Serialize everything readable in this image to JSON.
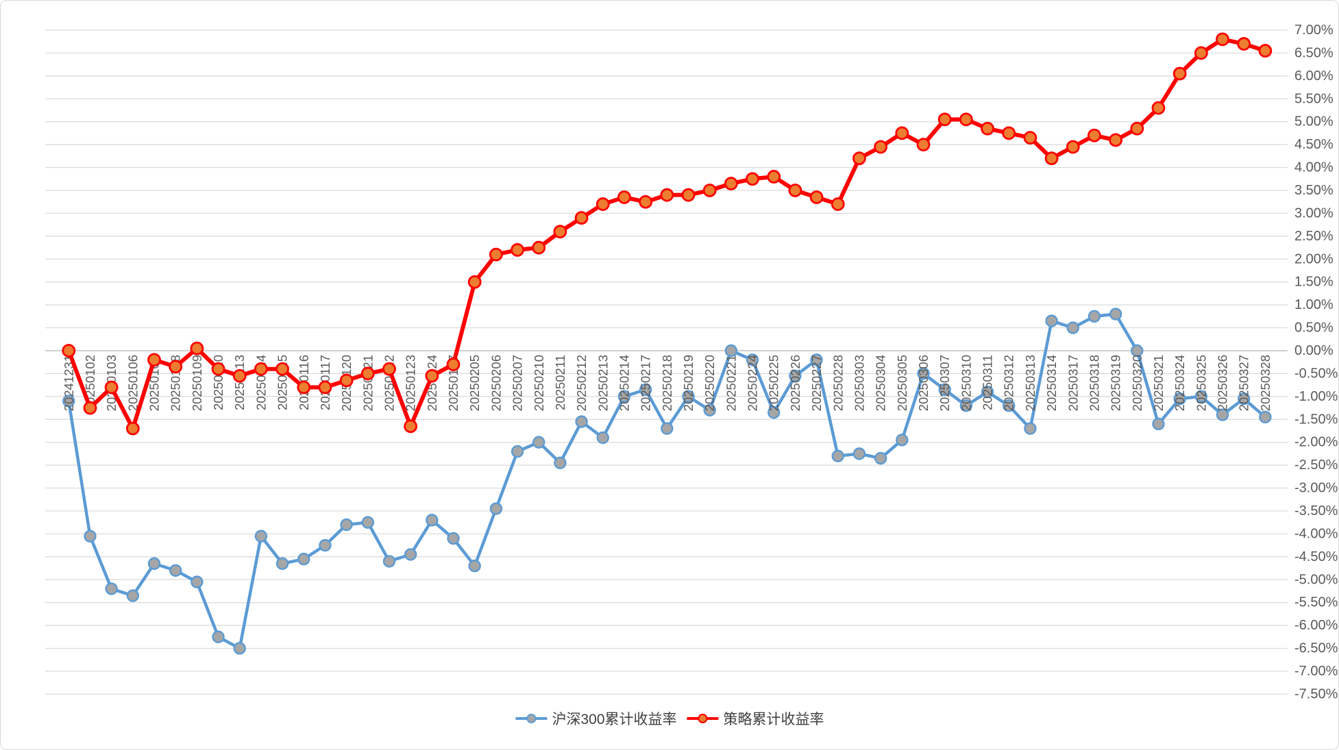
{
  "chart_data": {
    "type": "line",
    "x_labels": [
      "20241231",
      "20250102",
      "20250103",
      "20250106",
      "20250107",
      "20250108",
      "20250109",
      "20250110",
      "20250113",
      "20250114",
      "20250115",
      "20250116",
      "20250117",
      "20250120",
      "20250121",
      "20250122",
      "20250123",
      "20250124",
      "20250127",
      "20250205",
      "20250206",
      "20250207",
      "20250210",
      "20250211",
      "20250212",
      "20250213",
      "20250214",
      "20250217",
      "20250218",
      "20250219",
      "20250220",
      "20250221",
      "20250224",
      "20250225",
      "20250226",
      "20250227",
      "20250228",
      "20250303",
      "20250304",
      "20250305",
      "20250306",
      "20250307",
      "20250310",
      "20250311",
      "20250312",
      "20250313",
      "20250314",
      "20250317",
      "20250318",
      "20250319",
      "20250320",
      "20250321",
      "20250324",
      "20250325",
      "20250326",
      "20250327",
      "20250328"
    ],
    "series": [
      {
        "name": "沪深300累计收益率",
        "line_color": "#5B9BD5",
        "marker_fill": "#A6A6A6",
        "marker_stroke": "#5B9BD5",
        "values": [
          -1.1,
          -4.05,
          -5.2,
          -5.35,
          -4.65,
          -4.8,
          -5.05,
          -6.25,
          -6.5,
          -4.05,
          -4.65,
          -4.55,
          -4.25,
          -3.8,
          -3.75,
          -4.6,
          -4.45,
          -3.7,
          -4.1,
          -4.7,
          -3.45,
          -2.2,
          -2.0,
          -2.45,
          -1.55,
          -1.9,
          -1.0,
          -0.85,
          -1.7,
          -1.0,
          -1.3,
          0.0,
          -0.2,
          -1.35,
          -0.55,
          -0.2,
          -2.3,
          -2.25,
          -2.35,
          -1.95,
          -0.5,
          -0.85,
          -1.2,
          -0.9,
          -1.2,
          -1.7,
          0.65,
          0.5,
          0.75,
          0.8,
          0.0,
          -1.6,
          -1.05,
          -1.0,
          -1.4,
          -1.05,
          -1.45
        ]
      },
      {
        "name": "策略累计收益率",
        "line_color": "#FF0000",
        "marker_fill": "#ED7D31",
        "marker_stroke": "#FF0000",
        "values": [
          0.0,
          -1.25,
          -0.8,
          -1.7,
          -0.2,
          -0.35,
          0.05,
          -0.4,
          -0.55,
          -0.4,
          -0.4,
          -0.8,
          -0.8,
          -0.65,
          -0.5,
          -0.4,
          -1.65,
          -0.55,
          -0.3,
          1.5,
          2.1,
          2.2,
          2.25,
          2.6,
          2.9,
          3.2,
          3.35,
          3.25,
          3.4,
          3.4,
          3.5,
          3.65,
          3.75,
          3.8,
          3.5,
          3.35,
          3.2,
          4.2,
          4.45,
          4.75,
          4.5,
          5.05,
          5.05,
          4.85,
          4.75,
          4.65,
          4.2,
          4.45,
          4.7,
          4.6,
          4.85,
          5.3,
          6.05,
          6.5,
          6.8,
          6.7,
          6.55
        ]
      }
    ],
    "ylim": [
      -7.5,
      7.0
    ],
    "ytick_step": 0.5,
    "ytick_labels": [
      "7.00%",
      "6.50%",
      "6.00%",
      "5.50%",
      "5.00%",
      "4.50%",
      "4.00%",
      "3.50%",
      "3.00%",
      "2.50%",
      "2.00%",
      "1.50%",
      "1.00%",
      "0.50%",
      "0.00%",
      "-0.50%",
      "-1.00%",
      "-1.50%",
      "-2.00%",
      "-2.50%",
      "-3.00%",
      "-3.50%",
      "-4.00%",
      "-4.50%",
      "-5.00%",
      "-5.50%",
      "-6.00%",
      "-6.50%",
      "-7.00%",
      "-7.50%"
    ],
    "y_axis_side": "right",
    "x_label_rotation": -90,
    "grid": true,
    "legend_position": "bottom",
    "colors": {
      "gridline": "#D9D9D9",
      "axis_line": "#BFBFBF",
      "tick_text": "#595959",
      "background": "#FFFFFF"
    }
  },
  "legend": {
    "items": [
      {
        "label": "沪深300累计收益率",
        "line_color": "#5B9BD5",
        "marker_fill": "#A6A6A6"
      },
      {
        "label": "策略累计收益率",
        "line_color": "#FF0000",
        "marker_fill": "#ED7D31"
      }
    ]
  }
}
